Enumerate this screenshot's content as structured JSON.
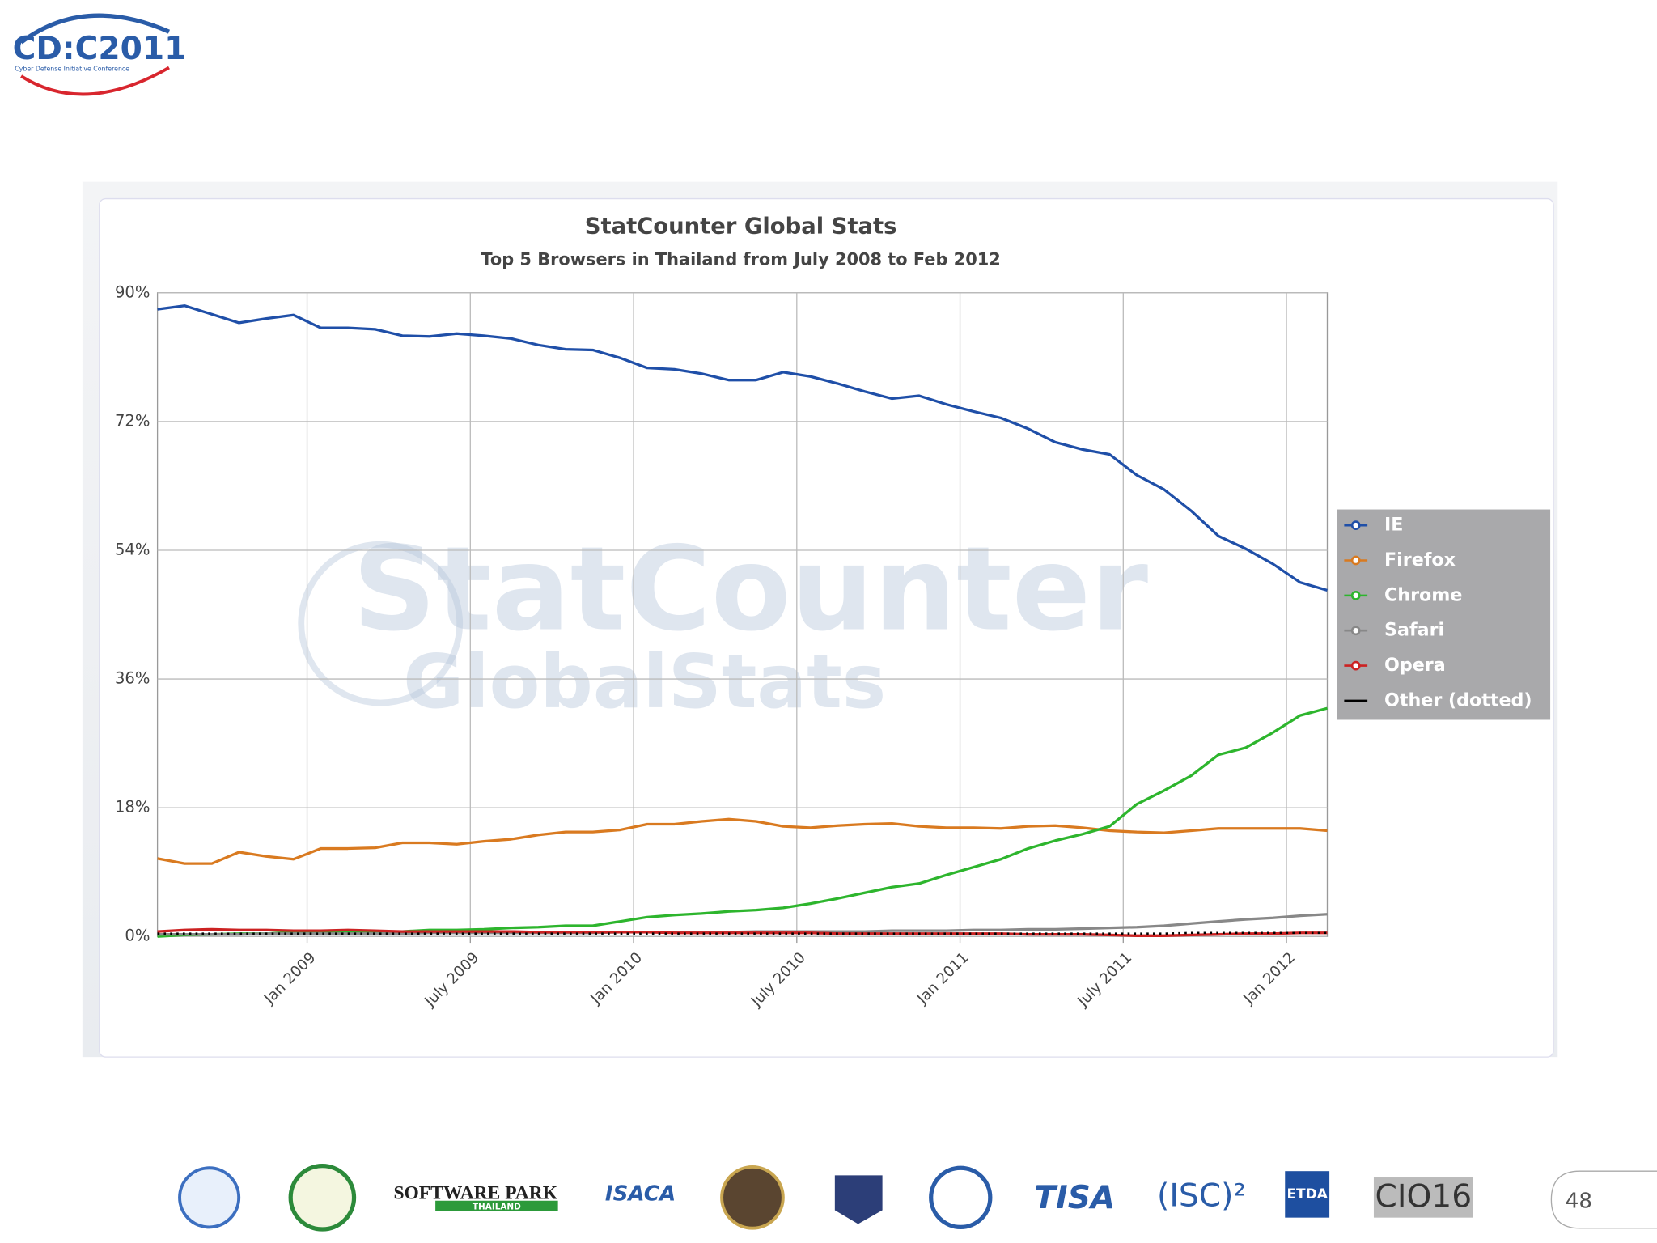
{
  "header": {
    "logo": "CD:C2011",
    "logo_subtitle": "Cyber Defense Initiative Conference"
  },
  "chart_data": {
    "type": "line",
    "title": "StatCounter Global Stats",
    "subtitle": "Top 5 Browsers in Thailand from July 2008 to Feb 2012",
    "watermark": [
      "StatCounter",
      "GlobalStats"
    ],
    "x": [
      "2008-07",
      "2008-08",
      "2008-09",
      "2008-10",
      "2008-11",
      "2008-12",
      "2009-01",
      "2009-02",
      "2009-03",
      "2009-04",
      "2009-05",
      "2009-06",
      "2009-07",
      "2009-08",
      "2009-09",
      "2009-10",
      "2009-11",
      "2009-12",
      "2010-01",
      "2010-02",
      "2010-03",
      "2010-04",
      "2010-05",
      "2010-06",
      "2010-07",
      "2010-08",
      "2010-09",
      "2010-10",
      "2010-11",
      "2010-12",
      "2011-01",
      "2011-02",
      "2011-03",
      "2011-04",
      "2011-05",
      "2011-06",
      "2011-07",
      "2011-08",
      "2011-09",
      "2011-10",
      "2011-11",
      "2011-12",
      "2012-01",
      "2012-02"
    ],
    "xticks": [
      {
        "value": "2009-01",
        "label": "Jan 2009"
      },
      {
        "value": "2009-07",
        "label": "July 2009"
      },
      {
        "value": "2010-01",
        "label": "Jan 2010"
      },
      {
        "value": "2010-07",
        "label": "July 2010"
      },
      {
        "value": "2011-01",
        "label": "Jan 2011"
      },
      {
        "value": "2011-07",
        "label": "July 2011"
      },
      {
        "value": "2012-01",
        "label": "Jan 2012"
      }
    ],
    "ylim": [
      0,
      90
    ],
    "yticks": [
      {
        "value": 0,
        "label": "0%"
      },
      {
        "value": 18,
        "label": "18%"
      },
      {
        "value": 36,
        "label": "36%"
      },
      {
        "value": 54,
        "label": "54%"
      },
      {
        "value": 72,
        "label": "72%"
      },
      {
        "value": 90,
        "label": "90%"
      }
    ],
    "grid": true,
    "legend": "right",
    "series": [
      {
        "name": "IE",
        "color": "#1f4fa8",
        "values": [
          87.7,
          88.2,
          87,
          85.8,
          86.4,
          86.9,
          85.1,
          85.1,
          84.9,
          84,
          83.9,
          84.3,
          84,
          83.6,
          82.7,
          82.1,
          82,
          80.9,
          79.5,
          79.3,
          78.7,
          77.8,
          77.8,
          78.9,
          78.3,
          77.3,
          76.2,
          75.2,
          75.6,
          74.4,
          73.4,
          72.5,
          71,
          69.1,
          68.1,
          67.4,
          64.5,
          62.5,
          59.5,
          56,
          54.2,
          52.1,
          49.5,
          48.4
        ]
      },
      {
        "name": "Firefox",
        "color": "#d97a20",
        "values": [
          10.9,
          10.2,
          10.2,
          11.8,
          11.2,
          10.8,
          12.3,
          12.3,
          12.4,
          13.1,
          13.1,
          12.9,
          13.3,
          13.6,
          14.2,
          14.6,
          14.6,
          14.9,
          15.7,
          15.7,
          16.1,
          16.4,
          16.1,
          15.4,
          15.2,
          15.5,
          15.7,
          15.8,
          15.4,
          15.2,
          15.2,
          15.1,
          15.4,
          15.5,
          15.2,
          14.8,
          14.6,
          14.5,
          14.8,
          15.1,
          15.1,
          15.1,
          15.1,
          14.8
        ]
      },
      {
        "name": "Chrome",
        "color": "#2db52d",
        "values": [
          0,
          0.2,
          0.3,
          0.4,
          0.4,
          0.6,
          0.6,
          0.6,
          0.7,
          0.7,
          0.9,
          0.9,
          1,
          1.2,
          1.3,
          1.5,
          1.5,
          2.1,
          2.7,
          3,
          3.2,
          3.5,
          3.7,
          4,
          4.6,
          5.3,
          6.1,
          6.9,
          7.4,
          8.6,
          9.7,
          10.8,
          12.3,
          13.4,
          14.3,
          15.4,
          18.5,
          20.4,
          22.5,
          25.4,
          26.4,
          28.5,
          30.9,
          31.9
        ]
      },
      {
        "name": "Safari",
        "color": "#888888",
        "values": [
          0.3,
          0.3,
          0.3,
          0.3,
          0.4,
          0.4,
          0.4,
          0.4,
          0.4,
          0.4,
          0.5,
          0.5,
          0.5,
          0.5,
          0.5,
          0.5,
          0.5,
          0.6,
          0.6,
          0.6,
          0.6,
          0.6,
          0.7,
          0.7,
          0.7,
          0.7,
          0.7,
          0.8,
          0.8,
          0.8,
          0.9,
          0.9,
          1,
          1,
          1.1,
          1.2,
          1.3,
          1.5,
          1.8,
          2.1,
          2.4,
          2.6,
          2.9,
          3.1
        ]
      },
      {
        "name": "Opera",
        "color": "#cc2222",
        "values": [
          0.7,
          0.9,
          1,
          0.9,
          0.9,
          0.8,
          0.8,
          0.9,
          0.8,
          0.7,
          0.7,
          0.7,
          0.7,
          0.7,
          0.6,
          0.6,
          0.6,
          0.6,
          0.6,
          0.5,
          0.5,
          0.5,
          0.5,
          0.5,
          0.5,
          0.4,
          0.4,
          0.4,
          0.4,
          0.4,
          0.4,
          0.4,
          0.3,
          0.3,
          0.3,
          0.2,
          0.1,
          0.1,
          0.2,
          0.3,
          0.4,
          0.4,
          0.5,
          0.5
        ]
      },
      {
        "name": "Other (dotted)",
        "color": "#000000",
        "dotted": true,
        "values": [
          0.4,
          0.4,
          0.4,
          0.4,
          0.4,
          0.4,
          0.4,
          0.4,
          0.4,
          0.4,
          0.4,
          0.4,
          0.4,
          0.4,
          0.4,
          0.4,
          0.4,
          0.4,
          0.4,
          0.4,
          0.4,
          0.4,
          0.4,
          0.4,
          0.4,
          0.4,
          0.4,
          0.4,
          0.4,
          0.4,
          0.4,
          0.4,
          0.4,
          0.4,
          0.4,
          0.4,
          0.4,
          0.4,
          0.5,
          0.5,
          0.5,
          0.5,
          0.5,
          0.5
        ]
      }
    ]
  },
  "footer": {
    "logos": [
      "SOFTWARE PARK",
      "THAILAND",
      "ISACA",
      "TISA",
      "(ISC)²",
      "ETDA",
      "CIO16"
    ],
    "page_number": "48"
  }
}
